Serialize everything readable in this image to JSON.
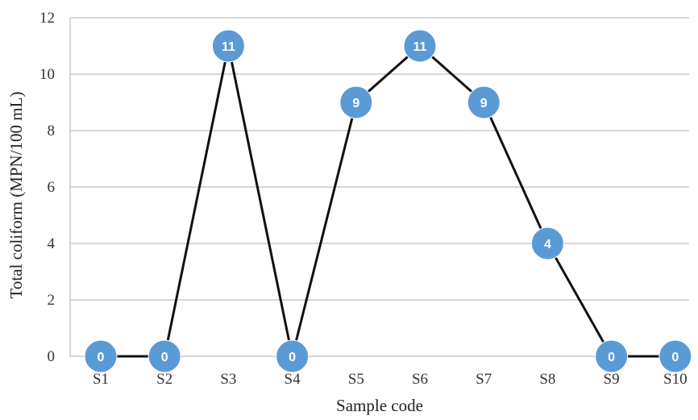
{
  "chart_data": {
    "type": "line",
    "title": "",
    "xlabel": "Sample code",
    "ylabel": "Total coliform (MPN/100 mL)",
    "categories": [
      "S1",
      "S2",
      "S3",
      "S4",
      "S5",
      "S6",
      "S7",
      "S8",
      "S9",
      "S10"
    ],
    "values": [
      0,
      0,
      11,
      0,
      9,
      11,
      9,
      4,
      0,
      0
    ],
    "data_labels": [
      "0",
      "0",
      "11",
      "0",
      "9",
      "11",
      "9",
      "4",
      "0",
      "0"
    ],
    "ylim": [
      0,
      12
    ],
    "yticks": [
      "0",
      "2",
      "4",
      "6",
      "8",
      "10",
      "12"
    ],
    "grid": true,
    "legend": "none",
    "colors": {
      "line": "#111111",
      "marker": "#5b9bd5",
      "marker_text": "#ffffff",
      "grid": "#bfbfbf"
    }
  }
}
